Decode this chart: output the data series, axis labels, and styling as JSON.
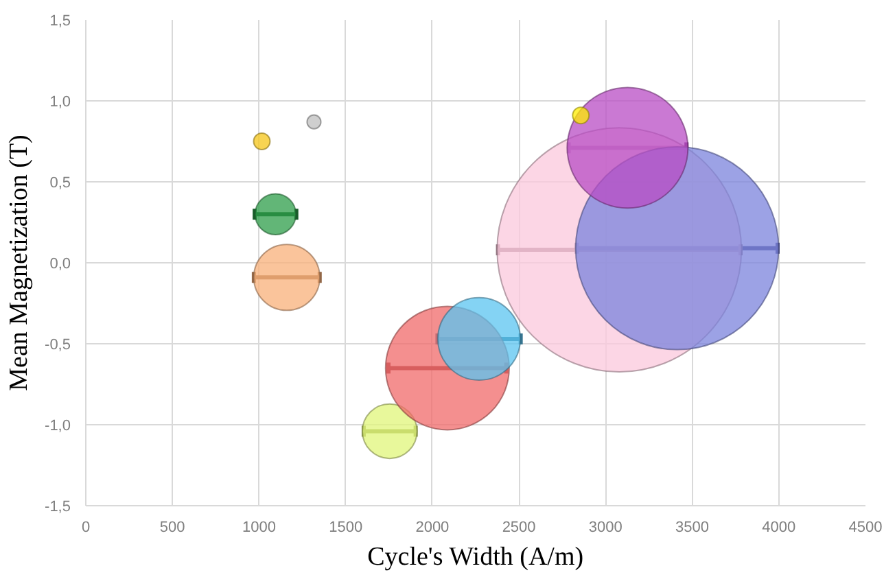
{
  "chart_data": {
    "type": "bubble",
    "xlabel": "Cycle's Width (A/m)",
    "ylabel": "Mean Magnetization (T)",
    "x": [
      1016,
      1317,
      1095,
      1160,
      1754,
      2087,
      2270,
      3079,
      3413,
      3127,
      2857
    ],
    "values": [
      0.75,
      0.87,
      0.3,
      -0.09,
      -1.04,
      -0.65,
      -0.47,
      0.08,
      0.09,
      0.71,
      0.91
    ],
    "sizes": [
      0.0045,
      0.0032,
      0.028,
      0.073,
      0.05,
      0.256,
      0.114,
      1,
      0.69,
      0.244,
      0.0045
    ],
    "xerrors": [
      null,
      null,
      120,
      190,
      150,
      340,
      240,
      700,
      580,
      340,
      null
    ],
    "colors": [
      "#f5c518",
      "#bfbfbf",
      "#2e9e4a",
      "#f8b07a",
      "#e0f57a",
      "#f06a6a",
      "#5bc4f0",
      "#fbc8dc",
      "#7b83dc",
      "#b84cc4",
      "#ffee00"
    ],
    "xlim": [
      0,
      4500
    ],
    "ylim": [
      -1.5,
      1.5
    ],
    "xticks": [
      0,
      500,
      1000,
      1500,
      2000,
      2500,
      3000,
      3500,
      4000,
      4500
    ],
    "yticks": [
      {
        "value": -1.5,
        "label": "-1,5"
      },
      {
        "value": -1.0,
        "label": "-1,0"
      },
      {
        "value": -0.5,
        "label": "-0,5"
      },
      {
        "value": 0.0,
        "label": "0,0"
      },
      {
        "value": 0.5,
        "label": "0,5"
      },
      {
        "value": 1.0,
        "label": "1,0"
      },
      {
        "value": 1.5,
        "label": "1,5"
      }
    ],
    "grid": true
  }
}
